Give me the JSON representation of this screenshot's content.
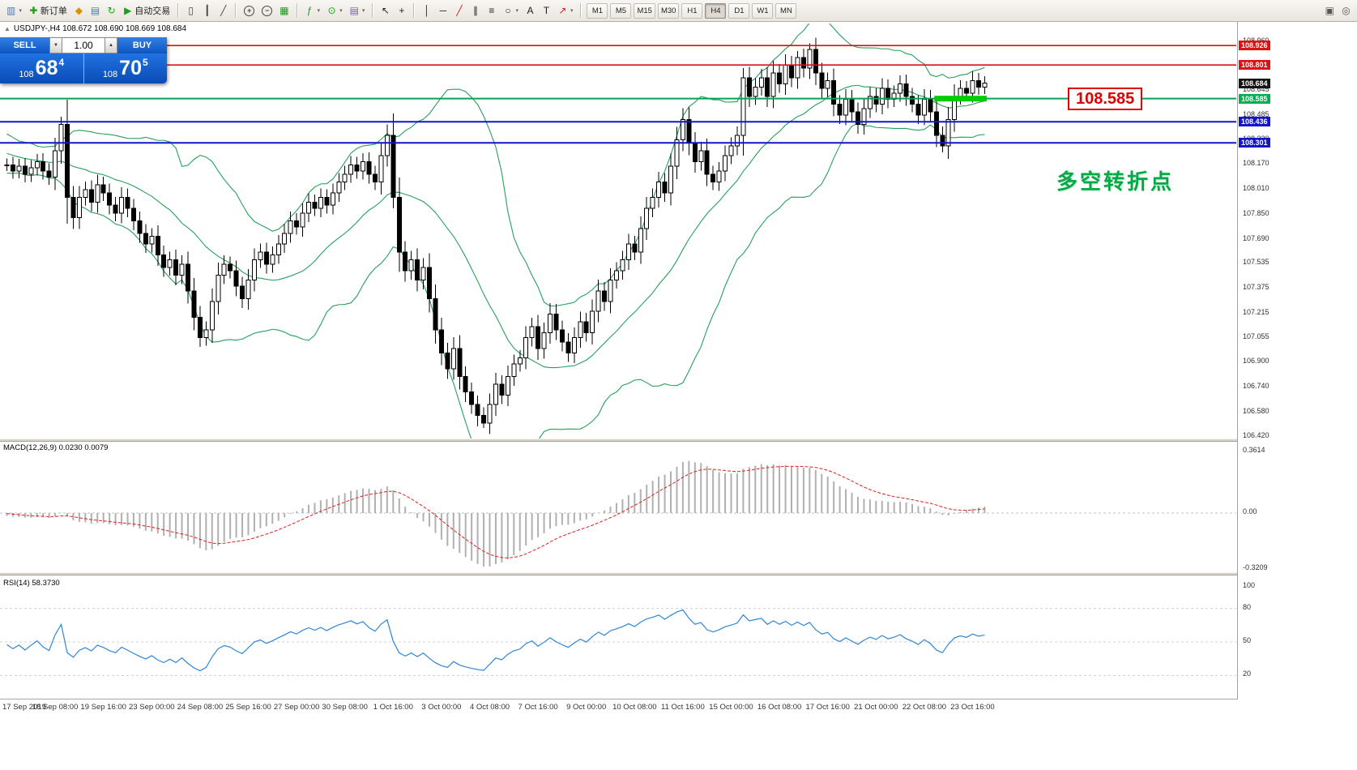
{
  "toolbar": {
    "items": [
      {
        "type": "icon",
        "name": "new-chart-icon",
        "glyph": "▥",
        "color": "#4a7ab5",
        "dd": true
      },
      {
        "type": "button",
        "name": "new-order-button",
        "label": "新订单",
        "glyph": "✚",
        "color": "#18a018"
      },
      {
        "type": "icon",
        "name": "market-watch-icon",
        "glyph": "◆",
        "color": "#d89400"
      },
      {
        "type": "icon",
        "name": "data-window-icon",
        "glyph": "▤",
        "color": "#4a7ab5"
      },
      {
        "type": "icon",
        "name": "refresh-icon",
        "glyph": "↻",
        "color": "#18a018"
      },
      {
        "type": "button",
        "name": "auto-trading-button",
        "label": "自动交易",
        "glyph": "▶",
        "color": "#18a018"
      },
      {
        "type": "sep"
      },
      {
        "type": "icon",
        "name": "bar-chart-icon",
        "glyph": "▯",
        "color": "#444444"
      },
      {
        "type": "icon",
        "name": "candlestick-chart-icon",
        "glyph": "┃",
        "color": "#444444"
      },
      {
        "type": "icon",
        "name": "line-chart-icon",
        "glyph": "╱",
        "color": "#444444"
      },
      {
        "type": "sep"
      },
      {
        "type": "icon",
        "name": "zoom-in-icon",
        "glyph": "+",
        "ring": true,
        "color": "#444444"
      },
      {
        "type": "icon",
        "name": "zoom-out-icon",
        "glyph": "−",
        "ring": true,
        "color": "#444444"
      },
      {
        "type": "icon",
        "name": "tile-windows-icon",
        "glyph": "▦",
        "color": "#18a018"
      },
      {
        "type": "sep"
      },
      {
        "type": "icon",
        "name": "indicators-icon",
        "glyph": "ƒ",
        "color": "#18a018",
        "dd": true
      },
      {
        "type": "icon",
        "name": "periods-icon",
        "glyph": "⊙",
        "color": "#18a018",
        "dd": true
      },
      {
        "type": "icon",
        "name": "templates-icon",
        "glyph": "▤",
        "color": "#7a5ab5",
        "dd": true
      },
      {
        "type": "sep"
      },
      {
        "type": "icon",
        "name": "cursor-icon",
        "glyph": "↖",
        "color": "#222222"
      },
      {
        "type": "icon",
        "name": "crosshair-icon",
        "glyph": "+",
        "color": "#222222"
      },
      {
        "type": "sep"
      },
      {
        "type": "icon",
        "name": "vertical-line-icon",
        "glyph": "│",
        "color": "#222222"
      },
      {
        "type": "icon",
        "name": "horizontal-line-icon",
        "glyph": "─",
        "color": "#222222"
      },
      {
        "type": "icon",
        "name": "trendline-icon",
        "glyph": "╱",
        "color": "#cc2222"
      },
      {
        "type": "icon",
        "name": "channel-icon",
        "glyph": "∥",
        "color": "#222222"
      },
      {
        "type": "icon",
        "name": "fibonacci-icon",
        "glyph": "≡",
        "color": "#222222"
      },
      {
        "type": "icon",
        "name": "shapes-icon",
        "glyph": "○",
        "color": "#222222",
        "dd": true
      },
      {
        "type": "icon",
        "name": "text-icon",
        "glyph": "A",
        "color": "#222222"
      },
      {
        "type": "icon",
        "name": "text-label-icon",
        "glyph": "T",
        "color": "#222222"
      },
      {
        "type": "icon",
        "name": "arrows-icon",
        "glyph": "↗",
        "color": "#cc2222",
        "dd": true
      },
      {
        "type": "sep"
      },
      {
        "type": "tf-group"
      },
      {
        "type": "spacer"
      },
      {
        "type": "icon",
        "name": "window-icon",
        "glyph": "▣",
        "color": "#555555"
      },
      {
        "type": "icon",
        "name": "search-icon",
        "glyph": "◎",
        "color": "#555555"
      }
    ],
    "timeframes": [
      "M1",
      "M5",
      "M15",
      "M30",
      "H1",
      "H4",
      "D1",
      "W1",
      "MN"
    ],
    "active_timeframe": "H4"
  },
  "chart": {
    "symbol_line": "USDJPY-,H4 108.672 108.690 108.669 108.684",
    "collapse_glyph": "▲",
    "trade_panel": {
      "sell_label": "SELL",
      "buy_label": "BUY",
      "volume": "1.00",
      "vol_down_glyph": "▼",
      "vol_up_glyph": "▲",
      "sell_price": {
        "prefix": "108",
        "big": "68",
        "sup": "4"
      },
      "buy_price": {
        "prefix": "108",
        "big": "70",
        "sup": "5"
      }
    },
    "price_axis": {
      "gridline_labels": [
        "108.960",
        "108.645",
        "108.485",
        "108.330",
        "108.170",
        "108.010",
        "107.850",
        "107.690",
        "107.535",
        "107.375",
        "107.215",
        "107.055",
        "106.900",
        "106.740",
        "106.580",
        "106.420"
      ],
      "tags": [
        {
          "text": "108.926",
          "price": 108.926,
          "bg": "#dd1111"
        },
        {
          "text": "108.801",
          "price": 108.801,
          "bg": "#dd1111"
        },
        {
          "text": "108.684",
          "price": 108.684,
          "bg": "#151515"
        },
        {
          "text": "108.585",
          "price": 108.585,
          "bg": "#00b050"
        },
        {
          "text": "108.436",
          "price": 108.436,
          "bg": "#1414cc"
        },
        {
          "text": "108.301",
          "price": 108.301,
          "bg": "#1414cc"
        }
      ]
    },
    "annotations": {
      "price_label": {
        "text": "108.585",
        "color": "#e00000"
      },
      "pivot_note": {
        "text": "多空转折点",
        "color": "#00aa44"
      }
    }
  },
  "chart_data": {
    "type": "candlestick",
    "symbol": "USDJPY-",
    "timeframe": "H4",
    "ohlc_current": {
      "open": 108.672,
      "high": 108.69,
      "low": 108.669,
      "close": 108.684
    },
    "price_range": [
      106.42,
      109.0
    ],
    "seed_closes": [
      107.9,
      107.95,
      108.0,
      108.05,
      108.1,
      108.15,
      108.2,
      108.25,
      108.3,
      108.35,
      108.4,
      108.45,
      108.42,
      108.38,
      108.35,
      108.4,
      108.44,
      108.4,
      108.36,
      108.3,
      108.34,
      108.38,
      108.35,
      108.3,
      108.26,
      108.3,
      108.25,
      108.2,
      108.24,
      108.28,
      108.25,
      108.2,
      108.16,
      108.2,
      108.24,
      108.2,
      108.15,
      108.18,
      108.2,
      108.16
    ],
    "closes": [
      108.16,
      108.12,
      108.15,
      108.1,
      108.14,
      108.18,
      108.12,
      108.08,
      108.25,
      108.42,
      107.95,
      107.82,
      107.95,
      108.0,
      107.92,
      108.03,
      107.98,
      107.9,
      107.85,
      107.95,
      107.88,
      107.8,
      107.72,
      107.65,
      107.7,
      107.58,
      107.5,
      107.55,
      107.45,
      107.52,
      107.35,
      107.18,
      107.05,
      107.1,
      107.28,
      107.45,
      107.52,
      107.48,
      107.38,
      107.3,
      107.42,
      107.55,
      107.6,
      107.52,
      107.58,
      107.65,
      107.72,
      107.8,
      107.76,
      107.85,
      107.92,
      107.88,
      107.95,
      107.9,
      107.98,
      108.05,
      108.1,
      108.16,
      108.12,
      108.18,
      108.1,
      108.05,
      108.22,
      108.35,
      107.95,
      107.6,
      107.48,
      107.55,
      107.42,
      107.5,
      107.3,
      107.1,
      106.95,
      106.85,
      106.98,
      106.8,
      106.7,
      106.62,
      106.55,
      106.5,
      106.62,
      106.75,
      106.68,
      106.8,
      106.88,
      106.92,
      107.05,
      107.12,
      106.98,
      107.08,
      107.2,
      107.1,
      107.02,
      106.95,
      107.05,
      107.15,
      107.08,
      107.22,
      107.35,
      107.28,
      107.42,
      107.48,
      107.55,
      107.65,
      107.6,
      107.75,
      107.88,
      107.95,
      108.05,
      107.98,
      108.15,
      108.32,
      108.45,
      108.3,
      108.18,
      108.25,
      108.1,
      108.05,
      108.12,
      108.22,
      108.28,
      108.35,
      108.72,
      108.6,
      108.66,
      108.72,
      108.6,
      108.75,
      108.68,
      108.8,
      108.72,
      108.85,
      108.78,
      108.9,
      108.75,
      108.65,
      108.7,
      108.55,
      108.48,
      108.58,
      108.5,
      108.42,
      108.52,
      108.6,
      108.55,
      108.65,
      108.58,
      108.62,
      108.68,
      108.6,
      108.55,
      108.48,
      108.58,
      108.5,
      108.35,
      108.28,
      108.45,
      108.6,
      108.65,
      108.62,
      108.7,
      108.66,
      108.684
    ],
    "special_highs": {
      "9": 108.47,
      "63": 108.42,
      "122": 108.78,
      "131": 108.89,
      "133": 108.94
    },
    "special_lows": {
      "10": 107.78,
      "32": 106.99,
      "64": 107.88,
      "78": 106.48,
      "79": 106.47,
      "155": 108.24
    },
    "bollinger": {
      "period": 20,
      "deviation": 2,
      "color": "#27a05d"
    },
    "levels": [
      {
        "price": 108.926,
        "color": "#dd1111",
        "width": 1.6
      },
      {
        "price": 108.801,
        "color": "#dd1111",
        "width": 1.6
      },
      {
        "price": 108.585,
        "color": "#00a651",
        "width": 2
      },
      {
        "price": 108.436,
        "color": "#1414cc",
        "width": 2
      },
      {
        "price": 108.301,
        "color": "#1414cc",
        "width": 2
      }
    ],
    "highlight_zone": {
      "price": 108.585,
      "bar_start": 154,
      "bar_end": 162,
      "color": "#00cc00"
    },
    "time_labels": [
      "17 Sep 2019",
      "18 Sep 08:00",
      "19 Sep 16:00",
      "23 Sep 00:00",
      "24 Sep 08:00",
      "25 Sep 16:00",
      "27 Sep 00:00",
      "30 Sep 08:00",
      "1 Oct 16:00",
      "3 Oct 00:00",
      "4 Oct 08:00",
      "7 Oct 16:00",
      "9 Oct 00:00",
      "10 Oct 08:00",
      "11 Oct 16:00",
      "15 Oct 00:00",
      "16 Oct 08:00",
      "17 Oct 16:00",
      "21 Oct 00:00",
      "22 Oct 08:00",
      "23 Oct 16:00"
    ],
    "label_every_bars": 8,
    "macd": {
      "title": "MACD(12,26,9) 0.0230 0.0079",
      "params": [
        12,
        26,
        9
      ],
      "axis_labels": [
        "0.3614",
        "0.00",
        "-0.3209"
      ],
      "histogram_color": "#b0b0b0",
      "signal_color": "#dd2222"
    },
    "rsi": {
      "title": "RSI(14) 58.3730",
      "period": 14,
      "value": 58.373,
      "axis_labels": [
        "100",
        "80",
        "50",
        "20"
      ],
      "line_color": "#2e86d7"
    }
  }
}
